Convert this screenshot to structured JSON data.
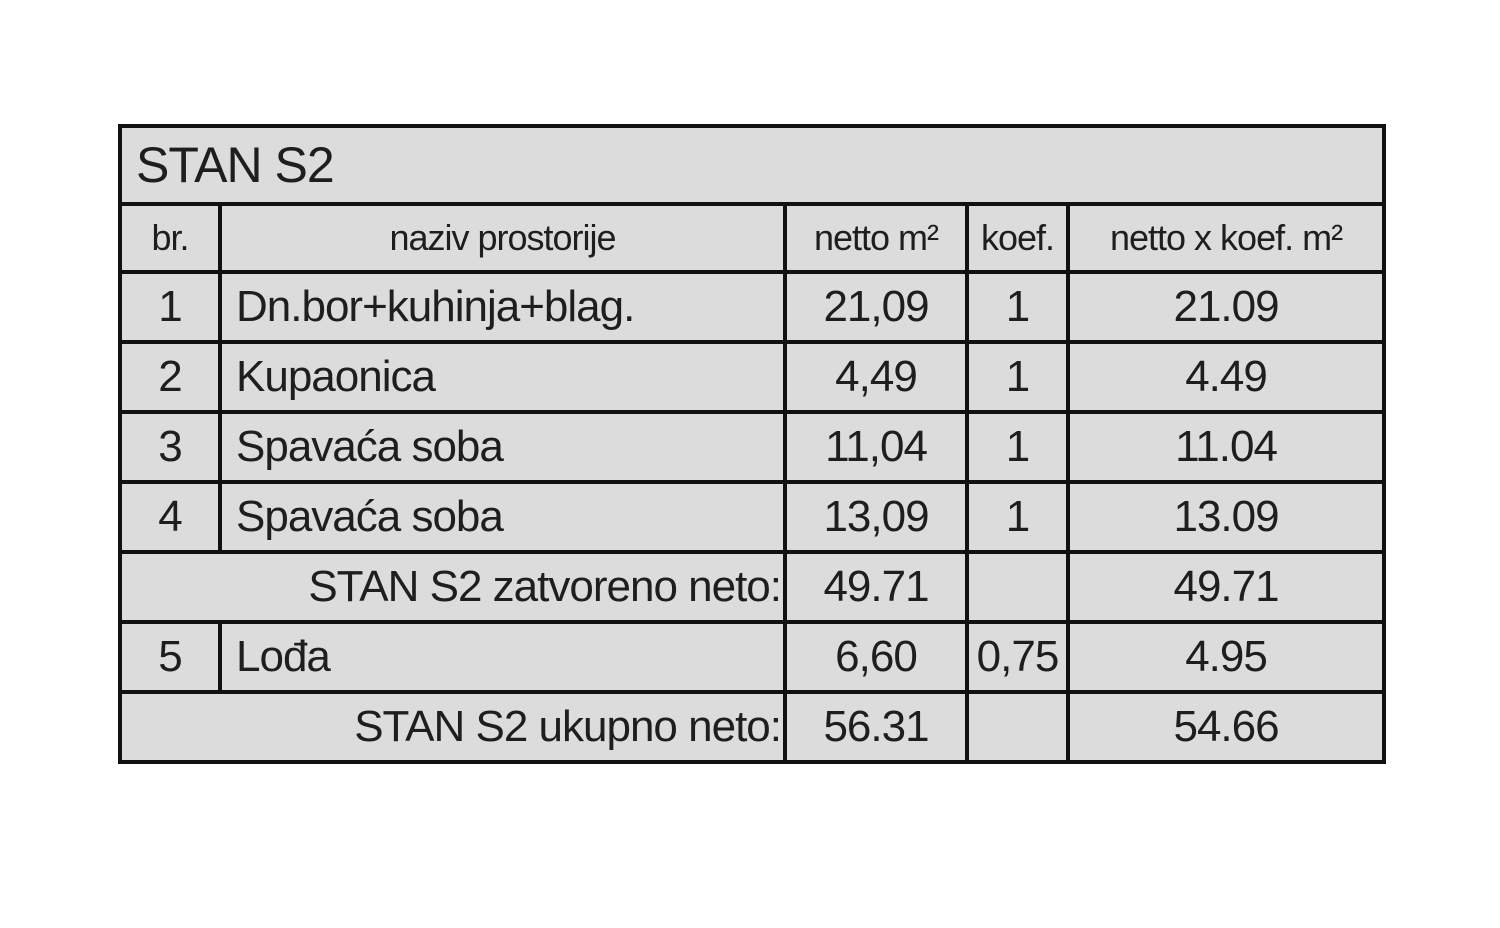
{
  "title": "STAN S2",
  "headers": [
    "br.",
    "naziv prostorije",
    "netto m²",
    "koef.",
    "netto x koef. m²"
  ],
  "rows": [
    {
      "no": "1",
      "name": "Dn.bor+kuhinja+blag.",
      "netto": "21,09",
      "koef": "1",
      "total": "21.09"
    },
    {
      "no": "2",
      "name": "Kupaonica",
      "netto": "4,49",
      "koef": "1",
      "total": "4.49"
    },
    {
      "no": "3",
      "name": "Spavaća soba",
      "netto": "11,04",
      "koef": "1",
      "total": "11.04"
    },
    {
      "no": "4",
      "name": "Spavaća soba",
      "netto": "13,09",
      "koef": "1",
      "total": "13.09"
    }
  ],
  "subtotal": {
    "label": "STAN S2 zatvoreno neto:",
    "netto": "49.71",
    "total": "49.71"
  },
  "loggia": {
    "no": "5",
    "name": "Lođa",
    "netto": "6,60",
    "koef": "0,75",
    "total": "4.95"
  },
  "grand_total": {
    "label": "STAN S2 ukupno neto:",
    "netto": "56.31",
    "total": "54.66"
  }
}
